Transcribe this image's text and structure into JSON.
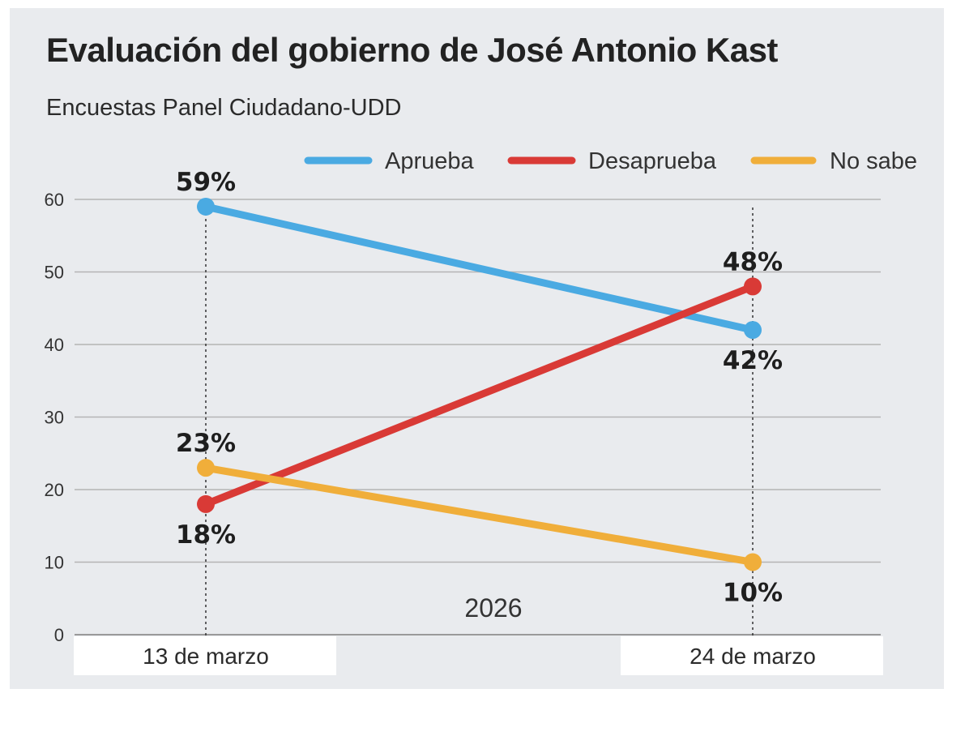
{
  "chart_data": {
    "type": "line",
    "title": "Evaluación del gobierno de José Antonio Kast",
    "subtitle": "Encuestas Panel Ciudadano-UDD",
    "categories": [
      "13 de marzo",
      "24 de marzo"
    ],
    "xlabel": "2026",
    "ylabel": "",
    "ylim": [
      0,
      60
    ],
    "yticks": [
      "0",
      "10",
      "20",
      "30",
      "40",
      "50",
      "60"
    ],
    "grid": true,
    "legend": "top-right",
    "series": [
      {
        "name": "Aprueba",
        "color": "#4aaae2",
        "values": [
          59,
          42
        ],
        "labels": [
          "59%",
          "42%"
        ]
      },
      {
        "name": "Desaprueba",
        "color": "#d93a36",
        "values": [
          18,
          48
        ],
        "labels": [
          "18%",
          "48%"
        ]
      },
      {
        "name": "No sabe",
        "color": "#f0ae3a",
        "values": [
          23,
          10
        ],
        "labels": [
          "23%",
          "10%"
        ]
      }
    ]
  }
}
